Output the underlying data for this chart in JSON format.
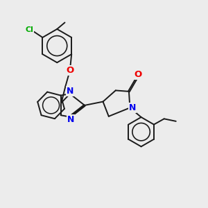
{
  "background_color": "#ececec",
  "bond_color": "#1a1a1a",
  "N_color": "#0000ee",
  "O_color": "#ee0000",
  "Cl_color": "#00aa00",
  "bond_width": 1.4,
  "figsize": [
    3.0,
    3.0
  ],
  "dpi": 100,
  "xlim": [
    0,
    10
  ],
  "ylim": [
    0,
    10
  ]
}
